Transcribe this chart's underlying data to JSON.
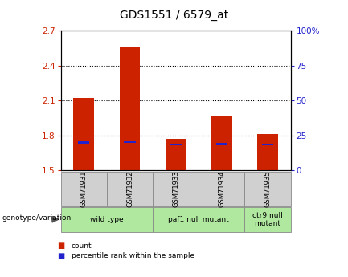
{
  "title": "GDS1551 / 6579_at",
  "samples": [
    "GSM71931",
    "GSM71932",
    "GSM71933",
    "GSM71934",
    "GSM71935"
  ],
  "count_values": [
    2.12,
    2.56,
    1.77,
    1.97,
    1.81
  ],
  "percentile_values": [
    20.0,
    20.5,
    18.5,
    19.0,
    18.5
  ],
  "ylim_left": [
    1.5,
    2.7
  ],
  "ylim_right": [
    0,
    100
  ],
  "yticks_left": [
    1.5,
    1.8,
    2.1,
    2.4,
    2.7
  ],
  "yticks_right": [
    0,
    25,
    50,
    75,
    100
  ],
  "ytick_labels_left": [
    "1.5",
    "1.8",
    "2.1",
    "2.4",
    "2.7"
  ],
  "ytick_labels_right": [
    "0",
    "25",
    "50",
    "75",
    "100%"
  ],
  "bar_bottom": 1.5,
  "bar_width": 0.45,
  "count_color": "#cc2200",
  "percentile_color": "#2222cc",
  "bg_color": "#ffffff",
  "plot_bg_color": "#ffffff",
  "sample_box_color": "#d0d0d0",
  "groups": [
    {
      "label": "wild type",
      "samples": [
        0,
        1
      ],
      "color": "#b0e8a0"
    },
    {
      "label": "paf1 null mutant",
      "samples": [
        2,
        3
      ],
      "color": "#b0e8a0"
    },
    {
      "label": "ctr9 null\nmutant",
      "samples": [
        4
      ],
      "color": "#b0e8a0"
    }
  ],
  "legend_count_label": "count",
  "legend_pct_label": "percentile rank within the sample",
  "genotype_label": "genotype/variation"
}
